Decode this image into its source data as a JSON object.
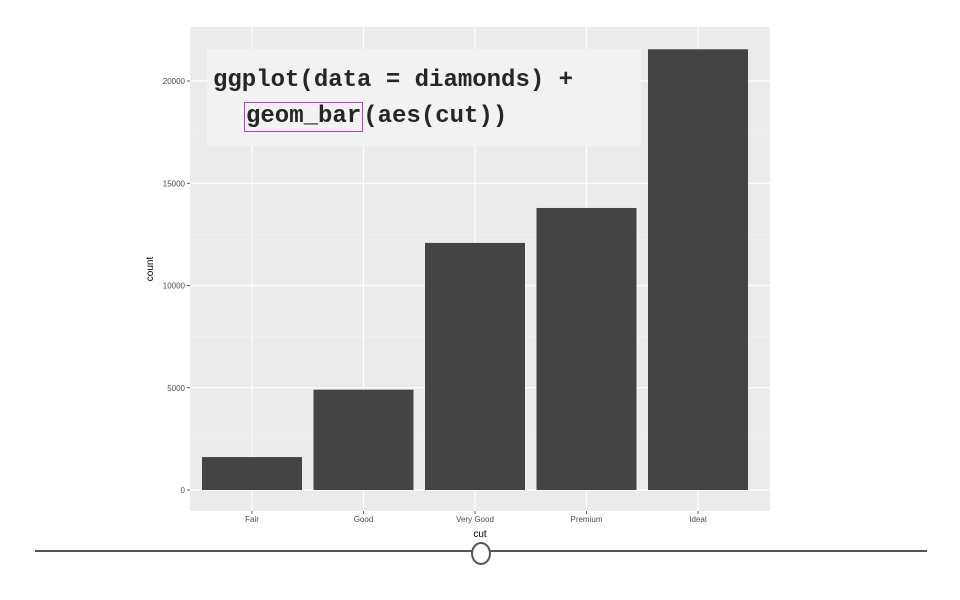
{
  "chart_data": {
    "type": "bar",
    "categories": [
      "Fair",
      "Good",
      "Very Good",
      "Premium",
      "Ideal"
    ],
    "values": [
      1610,
      4906,
      12082,
      13791,
      21551
    ],
    "xlabel": "cut",
    "ylabel": "count",
    "ylim": [
      0,
      22000
    ],
    "yticks": [
      0,
      5000,
      10000,
      15000,
      20000
    ],
    "grid": true,
    "colors": {
      "bar": "#444444",
      "panel": "#ebebeb",
      "grid_major": "#ffffff",
      "grid_minor": "#f2f2f2"
    }
  },
  "code_overlay": {
    "line1": "ggplot(data = diamonds) +",
    "line2_highlight": "geom_bar",
    "line2_rest": "(aes(cut))",
    "highlight_color": "#b93ccf"
  },
  "slider": {
    "position": 0.5
  }
}
